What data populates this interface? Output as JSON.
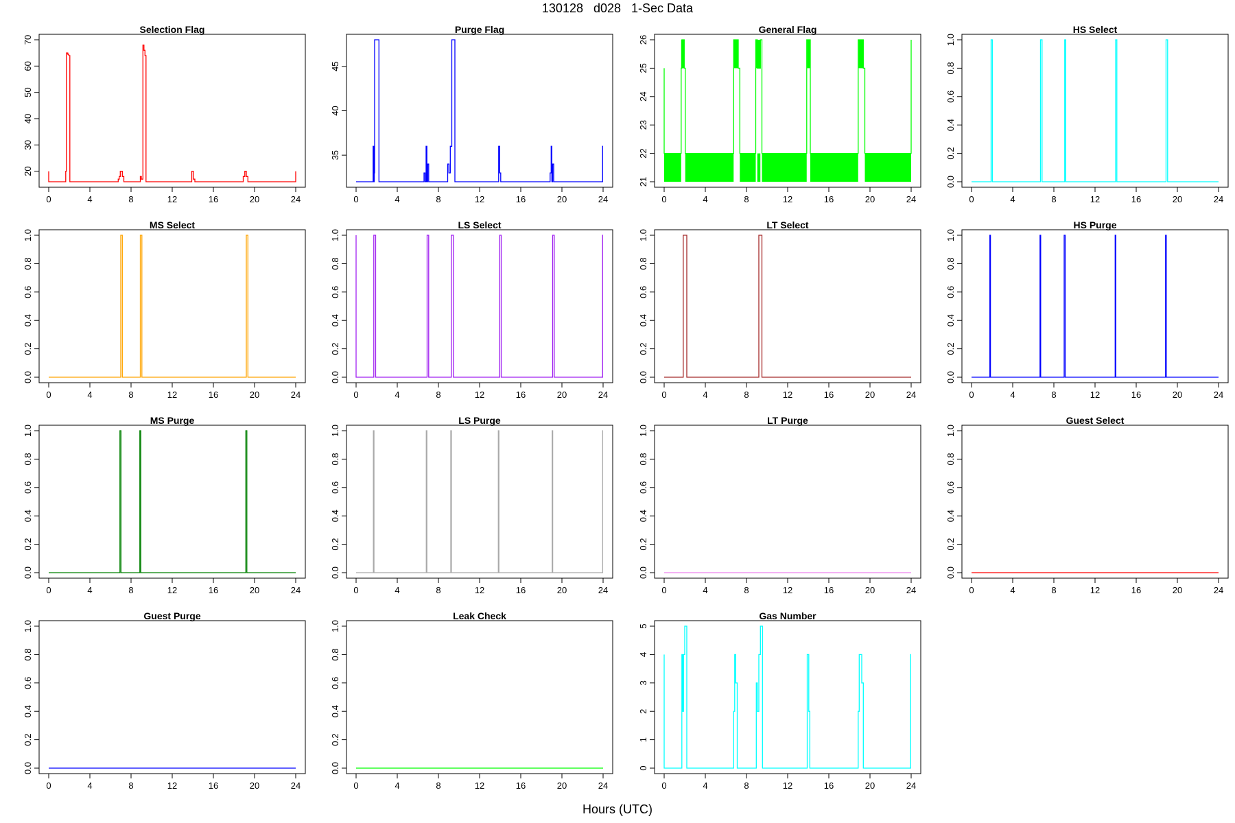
{
  "title": "130128   d028   1-Sec Data",
  "xlabel": "Hours (UTC)",
  "chart_data": [
    {
      "type": "line",
      "title": "Selection Flag",
      "color": "#ff0000",
      "xlim": [
        0,
        24
      ],
      "ylim": [
        16,
        70
      ],
      "yticks": [
        20,
        30,
        40,
        50,
        60,
        70
      ],
      "x": [
        0,
        0,
        0.1,
        1.65,
        1.65,
        1.72,
        1.72,
        1.85,
        1.85,
        1.95,
        1.95,
        2.05,
        2.05,
        6.75,
        6.75,
        6.85,
        6.85,
        6.95,
        6.95,
        7.15,
        7.15,
        7.3,
        7.3,
        8.9,
        8.9,
        9.0,
        9.0,
        9.15,
        9.15,
        9.25,
        9.25,
        9.35,
        9.35,
        9.45,
        9.45,
        13.9,
        13.9,
        14.05,
        14.05,
        14.2,
        14.2,
        18.9,
        18.9,
        19.05,
        19.05,
        19.2,
        19.2,
        19.35,
        19.35,
        24,
        24
      ],
      "y": [
        20,
        16,
        16,
        16,
        20,
        20,
        65,
        65,
        64.5,
        64.5,
        64,
        64,
        16,
        16,
        17,
        17,
        18,
        18,
        20,
        20,
        18,
        18,
        16,
        16,
        18,
        18,
        17,
        17,
        68,
        68,
        66,
        66,
        64,
        64,
        16,
        16,
        20,
        20,
        17,
        17,
        16,
        16,
        18,
        18,
        20,
        20,
        18,
        18,
        16,
        16,
        20
      ]
    },
    {
      "type": "line",
      "title": "Purge Flag",
      "color": "#0000ff",
      "xlim": [
        0,
        24
      ],
      "ylim": [
        32,
        48
      ],
      "yticks": [
        35,
        40,
        45
      ],
      "x": [
        0,
        1.65,
        1.65,
        1.72,
        1.72,
        1.77,
        1.77,
        1.8,
        1.8,
        1.88,
        1.88,
        2.22,
        2.22,
        6.6,
        6.6,
        6.7,
        6.7,
        6.8,
        6.8,
        6.88,
        6.88,
        6.95,
        6.95,
        7.05,
        7.05,
        8.9,
        8.9,
        9.02,
        9.02,
        9.15,
        9.15,
        9.3,
        9.3,
        9.6,
        9.6,
        13.85,
        13.85,
        13.95,
        13.95,
        14.05,
        14.05,
        18.85,
        18.85,
        18.95,
        18.95,
        19.02,
        19.02,
        19.1,
        19.1,
        19.2,
        19.2,
        23.95,
        23.95,
        24
      ],
      "y": [
        32,
        32,
        36,
        36,
        32,
        32,
        33,
        33,
        48,
        48,
        48,
        48,
        32,
        32,
        33,
        33,
        32,
        32,
        36,
        36,
        32,
        32,
        34,
        34,
        32,
        32,
        34,
        34,
        33,
        33,
        36,
        36,
        48,
        48,
        32,
        32,
        36,
        36,
        33,
        33,
        32,
        32,
        33,
        33,
        36,
        36,
        32,
        32,
        34,
        34,
        32,
        32,
        36,
        36
      ]
    },
    {
      "type": "line",
      "title": "General Flag",
      "color": "#00ff00",
      "xlim": [
        0,
        24
      ],
      "ylim": [
        21,
        26
      ],
      "yticks": [
        21,
        22,
        23,
        24,
        25,
        26
      ],
      "x": [
        0,
        0,
        0.05,
        1.65,
        1.65,
        1.72,
        1.72,
        1.95,
        1.95,
        2.05,
        2.05,
        6.75,
        6.75,
        7.2,
        7.2,
        7.35,
        7.35,
        8.9,
        8.9,
        9.05,
        9.05,
        9.35,
        9.35,
        9.5,
        9.5,
        13.85,
        13.85,
        14.2,
        14.2,
        18.85,
        18.85,
        19.35,
        19.35,
        19.5,
        19.5,
        24,
        24
      ],
      "y": [
        25,
        22,
        22,
        22,
        25,
        25,
        26,
        26,
        25,
        25,
        22,
        22,
        26,
        26,
        25,
        25,
        22,
        22,
        26,
        26,
        25,
        25,
        26,
        26,
        22,
        22,
        26,
        26,
        22,
        22,
        26,
        26,
        25,
        25,
        22,
        22,
        26
      ],
      "fill_band": [
        21,
        22
      ],
      "fill_blocks": [
        [
          1.65,
          1.95,
          25,
          26
        ],
        [
          6.75,
          7.2,
          25,
          26
        ],
        [
          8.9,
          9.35,
          25,
          26
        ],
        [
          13.9,
          14.2,
          25,
          26
        ],
        [
          18.9,
          19.35,
          25,
          26
        ]
      ],
      "fill_gaps": [
        [
          1.65,
          2.05
        ],
        [
          6.75,
          7.35
        ],
        [
          8.9,
          9.05
        ],
        [
          9.35,
          9.5
        ],
        [
          13.85,
          14.2
        ],
        [
          18.85,
          19.5
        ]
      ]
    },
    {
      "type": "line",
      "title": "HS Select",
      "color": "#00ffff",
      "xlim": [
        0,
        24
      ],
      "ylim": [
        0,
        1
      ],
      "yticks": [
        0,
        0.2,
        0.4,
        0.6,
        0.8,
        1.0
      ],
      "x": [
        0,
        1.9,
        1.9,
        2.02,
        2.02,
        6.7,
        6.7,
        6.85,
        6.85,
        9.05,
        9.05,
        9.15,
        9.15,
        14.0,
        14.0,
        14.12,
        14.12,
        18.9,
        18.9,
        19.05,
        19.05,
        24
      ],
      "y": [
        0,
        0,
        1,
        1,
        0,
        0,
        1,
        1,
        0,
        0,
        1,
        1,
        0,
        0,
        1,
        1,
        0,
        0,
        1,
        1,
        0,
        0
      ]
    },
    {
      "type": "line",
      "title": "MS Select",
      "color": "#ffa500",
      "xlim": [
        0,
        24
      ],
      "ylim": [
        0,
        1
      ],
      "yticks": [
        0,
        0.2,
        0.4,
        0.6,
        0.8,
        1.0
      ],
      "x": [
        0,
        7.0,
        7.0,
        7.15,
        7.15,
        8.9,
        8.9,
        9.05,
        9.05,
        19.2,
        19.2,
        19.35,
        19.35,
        24
      ],
      "y": [
        0,
        0,
        1,
        1,
        0,
        0,
        1,
        1,
        0,
        0,
        1,
        1,
        0,
        0
      ]
    },
    {
      "type": "line",
      "title": "LS Select",
      "color": "#a020f0",
      "xlim": [
        0,
        24
      ],
      "ylim": [
        0,
        1
      ],
      "yticks": [
        0,
        0.2,
        0.4,
        0.6,
        0.8,
        1.0
      ],
      "x": [
        0,
        0,
        0.05,
        1.72,
        1.72,
        1.9,
        1.9,
        6.9,
        6.9,
        7.05,
        7.05,
        9.25,
        9.25,
        9.45,
        9.45,
        13.95,
        13.95,
        14.1,
        14.1,
        19.1,
        19.1,
        19.25,
        19.25,
        23.95,
        23.95,
        24
      ],
      "y": [
        1,
        0,
        0,
        0,
        1,
        1,
        0,
        0,
        1,
        1,
        0,
        0,
        1,
        1,
        0,
        0,
        1,
        1,
        0,
        0,
        1,
        1,
        0,
        0,
        1,
        1
      ]
    },
    {
      "type": "line",
      "title": "LT Select",
      "color": "#a52a2a",
      "xlim": [
        0,
        24
      ],
      "ylim": [
        0,
        1
      ],
      "yticks": [
        0,
        0.2,
        0.4,
        0.6,
        0.8,
        1.0
      ],
      "x": [
        0,
        1.85,
        1.85,
        2.2,
        2.2,
        9.2,
        9.2,
        9.5,
        9.5,
        24
      ],
      "y": [
        0,
        0,
        1,
        1,
        0,
        0,
        1,
        1,
        0,
        0
      ]
    },
    {
      "type": "line",
      "title": "HS Purge",
      "color": "#0000ff",
      "xlim": [
        0,
        24
      ],
      "ylim": [
        0,
        1
      ],
      "yticks": [
        0,
        0.2,
        0.4,
        0.6,
        0.8,
        1.0
      ],
      "x": [
        0,
        1.78,
        1.78,
        1.84,
        1.84,
        6.65,
        6.65,
        6.72,
        6.72,
        9.0,
        9.0,
        9.1,
        9.1,
        13.95,
        13.95,
        14.02,
        14.02,
        18.85,
        18.85,
        18.92,
        18.92,
        24
      ],
      "y": [
        0,
        0,
        1,
        1,
        0,
        0,
        1,
        1,
        0,
        0,
        1,
        1,
        0,
        0,
        1,
        1,
        0,
        0,
        1,
        1,
        0,
        0
      ]
    },
    {
      "type": "line",
      "title": "MS Purge",
      "color": "#008000",
      "xlim": [
        0,
        24
      ],
      "ylim": [
        0,
        1
      ],
      "yticks": [
        0,
        0.2,
        0.4,
        0.6,
        0.8,
        1.0
      ],
      "x": [
        0,
        6.92,
        6.92,
        7.02,
        7.02,
        8.85,
        8.85,
        8.95,
        8.95,
        19.15,
        19.15,
        19.25,
        19.25,
        24
      ],
      "y": [
        0,
        0,
        1,
        1,
        0,
        0,
        1,
        1,
        0,
        0,
        1,
        1,
        0,
        0
      ]
    },
    {
      "type": "line",
      "title": "LS Purge",
      "color": "#a9a9a9",
      "xlim": [
        0,
        24
      ],
      "ylim": [
        0,
        1
      ],
      "yticks": [
        0,
        0.2,
        0.4,
        0.6,
        0.8,
        1.0
      ],
      "x": [
        0,
        1.68,
        1.68,
        1.74,
        1.74,
        6.82,
        6.82,
        6.88,
        6.88,
        9.2,
        9.2,
        9.26,
        9.26,
        13.82,
        13.82,
        13.88,
        13.88,
        19.05,
        19.05,
        19.11,
        19.11,
        23.96,
        23.96,
        24
      ],
      "y": [
        0,
        0,
        1,
        1,
        0,
        0,
        1,
        1,
        0,
        0,
        1,
        1,
        0,
        0,
        1,
        1,
        0,
        0,
        1,
        1,
        0,
        0,
        1,
        1
      ]
    },
    {
      "type": "line",
      "title": "LT Purge",
      "color": "#ee82ee",
      "xlim": [
        0,
        24
      ],
      "ylim": [
        0,
        1
      ],
      "yticks": [
        0,
        0.2,
        0.4,
        0.6,
        0.8,
        1.0
      ],
      "x": [
        0,
        24
      ],
      "y": [
        0,
        0
      ]
    },
    {
      "type": "line",
      "title": "Guest Select",
      "color": "#ff0000",
      "xlim": [
        0,
        24
      ],
      "ylim": [
        0,
        1
      ],
      "yticks": [
        0,
        0.2,
        0.4,
        0.6,
        0.8,
        1.0
      ],
      "x": [
        0,
        24
      ],
      "y": [
        0,
        0
      ]
    },
    {
      "type": "line",
      "title": "Guest Purge",
      "color": "#0000ff",
      "xlim": [
        0,
        24
      ],
      "ylim": [
        0,
        1
      ],
      "yticks": [
        0,
        0.2,
        0.4,
        0.6,
        0.8,
        1.0
      ],
      "x": [
        0,
        24
      ],
      "y": [
        0,
        0
      ]
    },
    {
      "type": "line",
      "title": "Leak Check",
      "color": "#00ff00",
      "xlim": [
        0,
        24
      ],
      "ylim": [
        0,
        1
      ],
      "yticks": [
        0,
        0.2,
        0.4,
        0.6,
        0.8,
        1.0
      ],
      "x": [
        0,
        24
      ],
      "y": [
        0,
        0
      ]
    },
    {
      "type": "line",
      "title": "Gas Number",
      "color": "#00ffff",
      "xlim": [
        0,
        24
      ],
      "ylim": [
        0,
        5
      ],
      "yticks": [
        0,
        1,
        2,
        3,
        4,
        5
      ],
      "x": [
        0,
        0,
        0.05,
        1.72,
        1.72,
        1.8,
        1.8,
        1.88,
        1.88,
        2.0,
        2.0,
        2.2,
        2.2,
        6.75,
        6.75,
        6.85,
        6.85,
        6.95,
        6.95,
        7.1,
        7.1,
        7.25,
        7.25,
        8.95,
        8.95,
        9.05,
        9.05,
        9.2,
        9.2,
        9.35,
        9.35,
        9.55,
        9.55,
        13.9,
        13.9,
        14.05,
        14.05,
        14.15,
        14.15,
        14.25,
        14.25,
        18.85,
        18.85,
        18.95,
        18.95,
        19.2,
        19.2,
        19.35,
        19.35,
        19.5,
        19.5,
        23.95,
        23.95,
        24
      ],
      "y": [
        4,
        0,
        0,
        0,
        4,
        4,
        2,
        2,
        4,
        4,
        5,
        5,
        0,
        0,
        2,
        2,
        4,
        4,
        3,
        3,
        0,
        0,
        0,
        0,
        3,
        3,
        2,
        2,
        4,
        4,
        5,
        5,
        0,
        0,
        4,
        4,
        2,
        2,
        0,
        0,
        0,
        0,
        2,
        2,
        4,
        4,
        3,
        3,
        0,
        0,
        0,
        0,
        4,
        4
      ]
    }
  ],
  "x_ticks": [
    0,
    4,
    8,
    12,
    16,
    20,
    24
  ]
}
